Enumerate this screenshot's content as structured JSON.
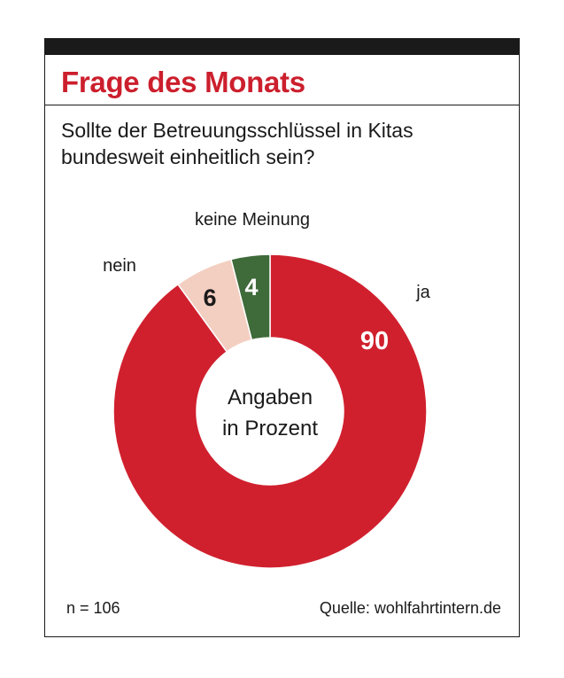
{
  "title": "Frage des Monats",
  "question": "Sollte der Betreuungsschlüssel in Kitas bundesweit einheitlich sein?",
  "footer": {
    "sample": "n = 106",
    "source": "Quelle: wohlfahrtintern.de"
  },
  "chart_data": {
    "type": "pie",
    "style": "donut",
    "center_label": [
      "Angaben",
      "in Prozent"
    ],
    "slices": [
      {
        "label": "ja",
        "value": 90,
        "value_label": "90",
        "color": "#d0202e",
        "value_text_color": "#ffffff"
      },
      {
        "label": "nein",
        "value": 6,
        "value_label": "6",
        "color": "#f3cfc2",
        "value_text_color": "#1a1a1a"
      },
      {
        "label": "keine Meinung",
        "value": 4,
        "value_label": "4",
        "color": "#3f6a3a",
        "value_text_color": "#ffffff"
      }
    ]
  }
}
